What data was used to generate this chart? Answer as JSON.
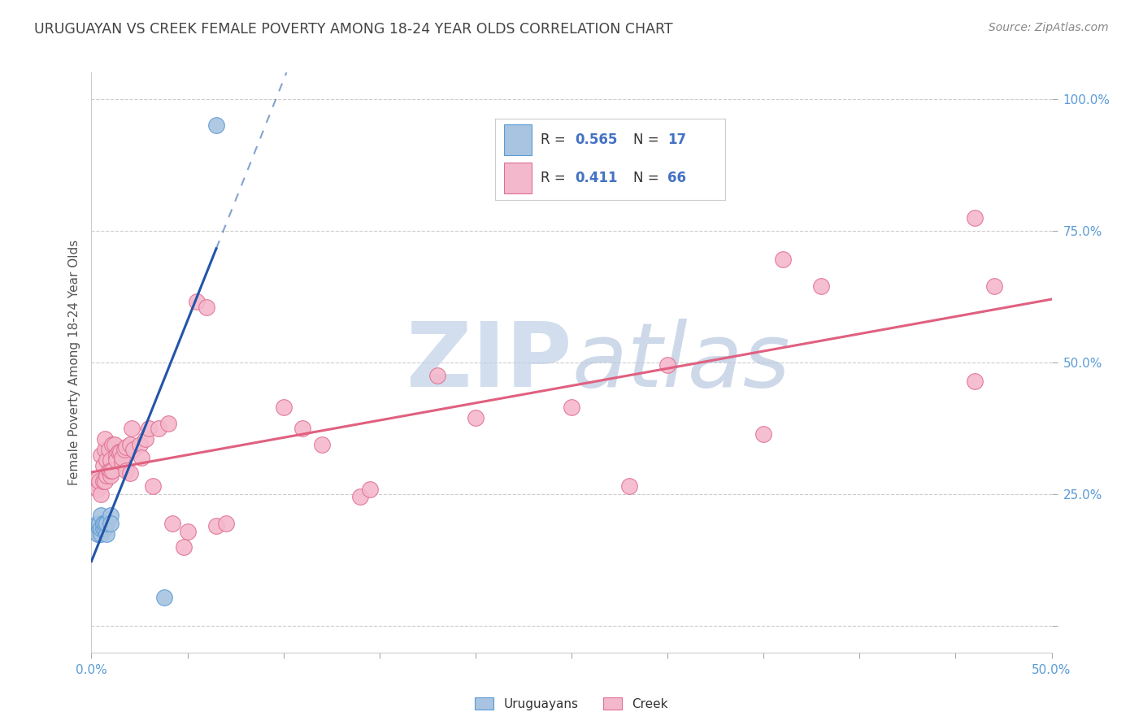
{
  "title": "URUGUAYAN VS CREEK FEMALE POVERTY AMONG 18-24 YEAR OLDS CORRELATION CHART",
  "source": "Source: ZipAtlas.com",
  "ylabel": "Female Poverty Among 18-24 Year Olds",
  "xlim": [
    0.0,
    0.5
  ],
  "ylim": [
    -0.05,
    1.05
  ],
  "xticks": [
    0.0,
    0.05,
    0.1,
    0.15,
    0.2,
    0.25,
    0.3,
    0.35,
    0.4,
    0.45,
    0.5
  ],
  "xtick_labels": [
    "0.0%",
    "",
    "",
    "",
    "",
    "",
    "",
    "",
    "",
    "",
    "50.0%"
  ],
  "yticks_right": [
    0.0,
    0.25,
    0.5,
    0.75,
    1.0
  ],
  "ytick_labels_right": [
    "",
    "25.0%",
    "50.0%",
    "75.0%",
    "100.0%"
  ],
  "background_color": "#ffffff",
  "grid_color": "#cccccc",
  "title_color": "#444444",
  "axis_tick_color": "#5b9bd5",
  "source_color": "#888888",
  "uruguayan_face_color": "#a8c4e0",
  "uruguayan_edge_color": "#5b9bd5",
  "creek_face_color": "#f4b8cc",
  "creek_edge_color": "#e07090",
  "uruguayan_line_color": "#2255aa",
  "creek_line_color": "#e06080",
  "watermark_zip_color": "#c0d0e8",
  "watermark_atlas_color": "#b8c8e0",
  "uruguayan_R": "0.565",
  "uruguayan_N": "17",
  "creek_R": "0.411",
  "creek_N": "66",
  "legend_color": "#4472c4",
  "uruguayan_x": [
    0.003,
    0.003,
    0.004,
    0.004,
    0.005,
    0.005,
    0.005,
    0.006,
    0.006,
    0.007,
    0.007,
    0.008,
    0.008,
    0.01,
    0.01,
    0.038,
    0.065
  ],
  "uruguayan_y": [
    0.195,
    0.175,
    0.185,
    0.195,
    0.175,
    0.185,
    0.21,
    0.185,
    0.195,
    0.185,
    0.195,
    0.175,
    0.195,
    0.21,
    0.195,
    0.055,
    0.95
  ],
  "creek_x": [
    0.003,
    0.003,
    0.003,
    0.004,
    0.004,
    0.004,
    0.005,
    0.005,
    0.006,
    0.006,
    0.007,
    0.007,
    0.007,
    0.008,
    0.008,
    0.009,
    0.009,
    0.01,
    0.01,
    0.01,
    0.011,
    0.011,
    0.012,
    0.013,
    0.013,
    0.014,
    0.015,
    0.016,
    0.016,
    0.017,
    0.018,
    0.018,
    0.02,
    0.02,
    0.021,
    0.022,
    0.025,
    0.026,
    0.028,
    0.03,
    0.032,
    0.035,
    0.04,
    0.042,
    0.048,
    0.05,
    0.055,
    0.06,
    0.065,
    0.07,
    0.1,
    0.11,
    0.12,
    0.14,
    0.145,
    0.18,
    0.2,
    0.25,
    0.28,
    0.3,
    0.35,
    0.36,
    0.38,
    0.46,
    0.46,
    0.47
  ],
  "creek_y": [
    0.27,
    0.28,
    0.26,
    0.275,
    0.185,
    0.175,
    0.325,
    0.25,
    0.305,
    0.275,
    0.335,
    0.275,
    0.355,
    0.285,
    0.315,
    0.335,
    0.295,
    0.285,
    0.315,
    0.295,
    0.345,
    0.295,
    0.345,
    0.325,
    0.315,
    0.33,
    0.33,
    0.31,
    0.32,
    0.335,
    0.34,
    0.295,
    0.345,
    0.29,
    0.375,
    0.335,
    0.345,
    0.32,
    0.355,
    0.375,
    0.265,
    0.375,
    0.385,
    0.195,
    0.15,
    0.18,
    0.615,
    0.605,
    0.19,
    0.195,
    0.415,
    0.375,
    0.345,
    0.245,
    0.26,
    0.475,
    0.395,
    0.415,
    0.265,
    0.495,
    0.365,
    0.695,
    0.645,
    0.775,
    0.465,
    0.645
  ]
}
